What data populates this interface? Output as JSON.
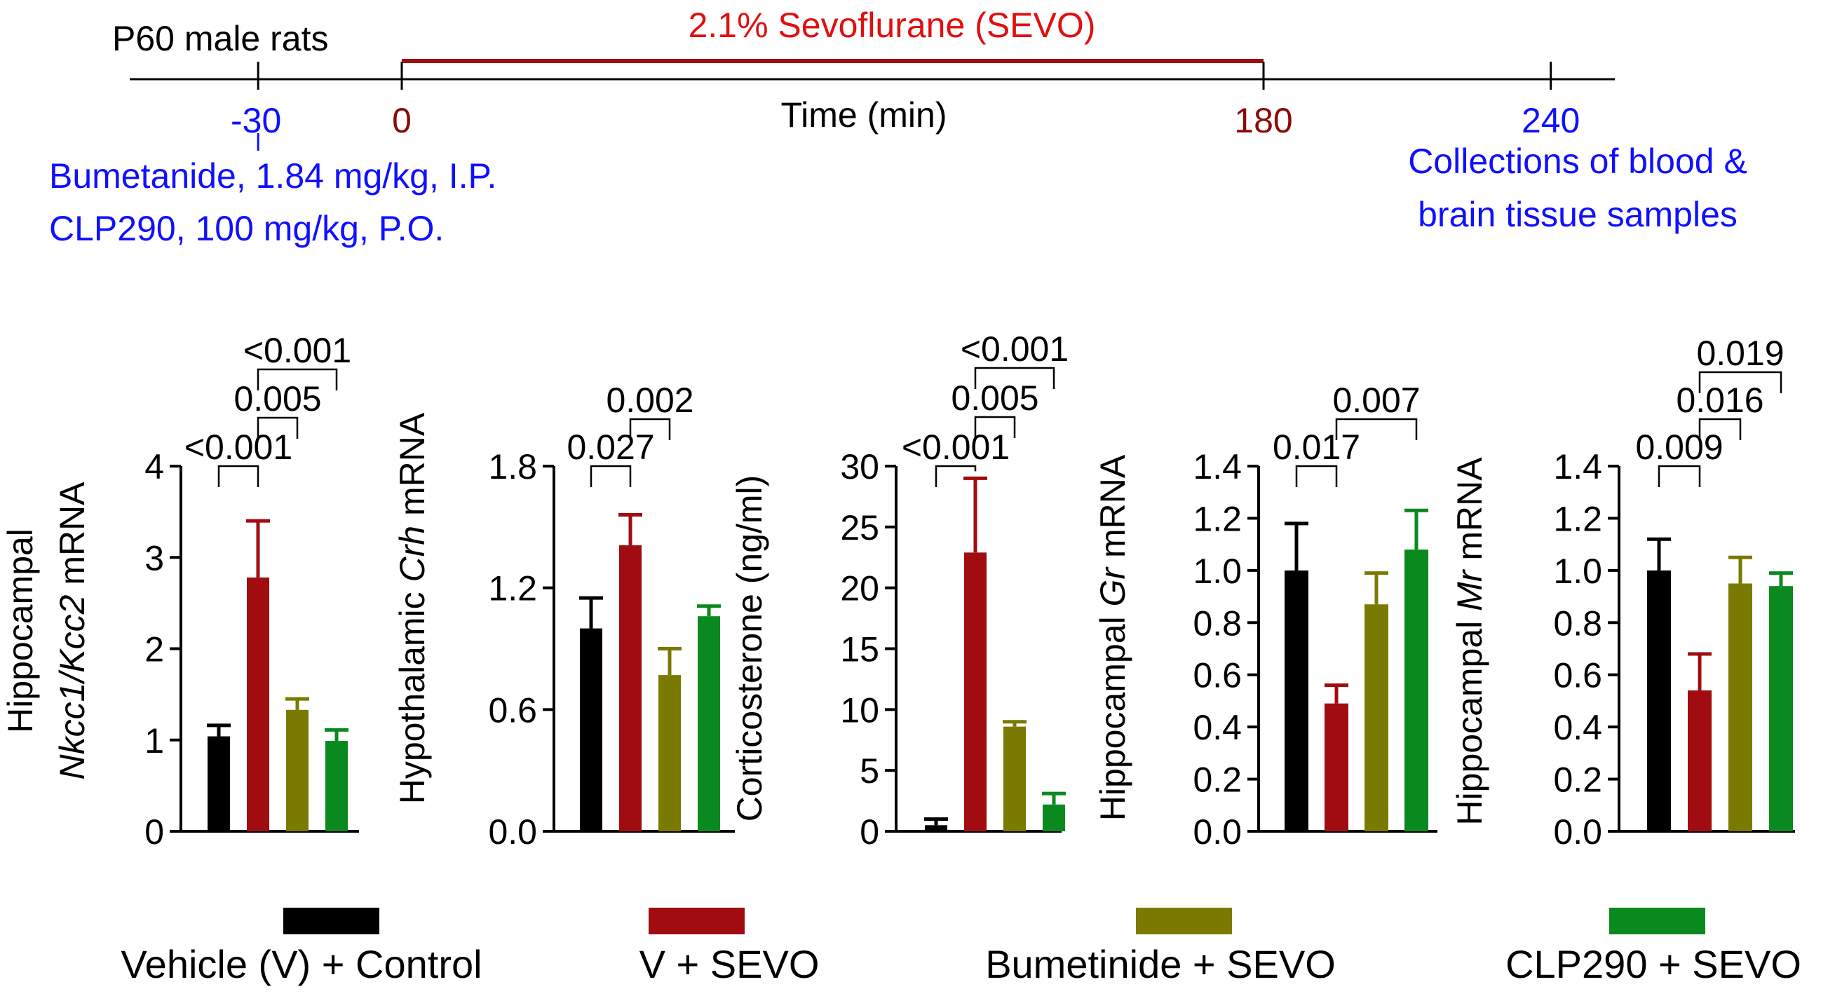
{
  "colors": {
    "vehicle_control": "#000000",
    "v_sevo": "#a00c10",
    "bumetanide_sevo": "#7a7a00",
    "clp290_sevo": "#0a8a1e",
    "timeline": "#000000",
    "timeline_sevo": "#a00c10",
    "blue_text": "#1010ff",
    "red_text": "#e01010",
    "dark_red_text": "#8b0a0a"
  },
  "timeline": {
    "subject_label": "P60 male rats",
    "sevo_label": "2.1% Sevoflurane (SEVO)",
    "axis_label": "Time (min)",
    "ticks": [
      {
        "label": "-30",
        "value": -30,
        "color": "blue"
      },
      {
        "label": "0",
        "value": 0,
        "color": "darkred"
      },
      {
        "label": "180",
        "value": 180,
        "color": "darkred"
      },
      {
        "label": "240",
        "value": 240,
        "color": "blue"
      }
    ],
    "sevo_start": 0,
    "sevo_end": 180,
    "pre_treatment_line1": "Bumetanide, 1.84 mg/kg, I.P.",
    "pre_treatment_line2": "CLP290, 100 mg/kg, P.O.",
    "collection_line1": "Collections of blood &",
    "collection_line2": "brain tissue samples"
  },
  "chart_data": [
    {
      "type": "bar",
      "id": "nkcc1-kcc2",
      "ylabel_line1": "Hippocampal",
      "ylabel_line2_parts": [
        {
          "text": "Nkcc1/Kcc2",
          "italic": true
        },
        {
          "text": " mRNA",
          "italic": false
        }
      ],
      "ylim": [
        0,
        4
      ],
      "yticks": [
        {
          "v": 0,
          "label": "0"
        },
        {
          "v": 1,
          "label": "1"
        },
        {
          "v": 2,
          "label": "2"
        },
        {
          "v": 3,
          "label": "3"
        },
        {
          "v": 4,
          "label": "4"
        }
      ],
      "categories": [
        "Vehicle (V) + Control",
        "V + SEVO",
        "Bumetinide + SEVO",
        "CLP290 + SEVO"
      ],
      "values": [
        1.04,
        2.78,
        1.33,
        0.99
      ],
      "errors": [
        0.12,
        0.62,
        0.12,
        0.12
      ],
      "comparisons": [
        {
          "a": 0,
          "b": 1,
          "label": "<0.001",
          "level": 0
        },
        {
          "a": 1,
          "b": 2,
          "label": "0.005",
          "level": 1
        },
        {
          "a": 1,
          "b": 3,
          "label": "<0.001",
          "level": 2
        }
      ]
    },
    {
      "type": "bar",
      "id": "crh",
      "ylabel_parts": [
        {
          "text": "Hypothalamic ",
          "italic": false
        },
        {
          "text": "Crh",
          "italic": true
        },
        {
          "text": " mRNA",
          "italic": false
        }
      ],
      "ylim": [
        0,
        1.8
      ],
      "yticks": [
        {
          "v": 0,
          "label": "0.0"
        },
        {
          "v": 0.6,
          "label": "0.6"
        },
        {
          "v": 1.2,
          "label": "1.2"
        },
        {
          "v": 1.8,
          "label": "1.8"
        }
      ],
      "categories": [
        "Vehicle (V) + Control",
        "V + SEVO",
        "Bumetinide + SEVO",
        "CLP290 + SEVO"
      ],
      "values": [
        1.0,
        1.41,
        0.77,
        1.06
      ],
      "errors": [
        0.15,
        0.15,
        0.13,
        0.05
      ],
      "comparisons": [
        {
          "a": 0,
          "b": 1,
          "label": "0.027",
          "level": 0
        },
        {
          "a": 1,
          "b": 2,
          "label": "0.002",
          "level": 1
        }
      ]
    },
    {
      "type": "bar",
      "id": "corticosterone",
      "ylabel_parts": [
        {
          "text": "Corticosterone (ng/ml)",
          "italic": false
        }
      ],
      "ylim": [
        0,
        30
      ],
      "yticks": [
        {
          "v": 0,
          "label": "0"
        },
        {
          "v": 5,
          "label": "5"
        },
        {
          "v": 10,
          "label": "10"
        },
        {
          "v": 15,
          "label": "15"
        },
        {
          "v": 20,
          "label": "20"
        },
        {
          "v": 25,
          "label": "25"
        },
        {
          "v": 30,
          "label": "30"
        }
      ],
      "categories": [
        "Vehicle (V) + Control",
        "V + SEVO",
        "Bumetinide + SEVO",
        "CLP290 + SEVO"
      ],
      "values": [
        0.5,
        22.9,
        8.6,
        2.2
      ],
      "errors": [
        0.5,
        6.1,
        0.4,
        0.9
      ],
      "comparisons": [
        {
          "a": 0,
          "b": 1,
          "label": "<0.001",
          "level": 0
        },
        {
          "a": 1,
          "b": 2,
          "label": "0.005",
          "level": 1
        },
        {
          "a": 1,
          "b": 3,
          "label": "<0.001",
          "level": 2
        }
      ]
    },
    {
      "type": "bar",
      "id": "gr",
      "ylabel_parts": [
        {
          "text": "Hippocampal ",
          "italic": false
        },
        {
          "text": "Gr",
          "italic": true
        },
        {
          "text": " mRNA",
          "italic": false
        }
      ],
      "ylim": [
        0,
        1.4
      ],
      "yticks": [
        {
          "v": 0,
          "label": "0.0"
        },
        {
          "v": 0.2,
          "label": "0.2"
        },
        {
          "v": 0.4,
          "label": "0.4"
        },
        {
          "v": 0.6,
          "label": "0.6"
        },
        {
          "v": 0.8,
          "label": "0.8"
        },
        {
          "v": 1.0,
          "label": "1.0"
        },
        {
          "v": 1.2,
          "label": "1.2"
        },
        {
          "v": 1.4,
          "label": "1.4"
        }
      ],
      "categories": [
        "Vehicle (V) + Control",
        "V + SEVO",
        "Bumetinide + SEVO",
        "CLP290 + SEVO"
      ],
      "values": [
        1.0,
        0.49,
        0.87,
        1.08
      ],
      "errors": [
        0.18,
        0.07,
        0.12,
        0.15
      ],
      "comparisons": [
        {
          "a": 0,
          "b": 1,
          "label": "0.017",
          "level": 0
        },
        {
          "a": 1,
          "b": 3,
          "label": "0.007",
          "level": 1
        }
      ]
    },
    {
      "type": "bar",
      "id": "mr",
      "ylabel_parts": [
        {
          "text": "Hippocampal ",
          "italic": false
        },
        {
          "text": "Mr",
          "italic": true
        },
        {
          "text": " mRNA",
          "italic": false
        }
      ],
      "ylim": [
        0,
        1.4
      ],
      "yticks": [
        {
          "v": 0,
          "label": "0.0"
        },
        {
          "v": 0.2,
          "label": "0.2"
        },
        {
          "v": 0.4,
          "label": "0.4"
        },
        {
          "v": 0.6,
          "label": "0.6"
        },
        {
          "v": 0.8,
          "label": "0.8"
        },
        {
          "v": 1.0,
          "label": "1.0"
        },
        {
          "v": 1.2,
          "label": "1.2"
        },
        {
          "v": 1.4,
          "label": "1.4"
        }
      ],
      "categories": [
        "Vehicle (V) + Control",
        "V + SEVO",
        "Bumetinide + SEVO",
        "CLP290 + SEVO"
      ],
      "values": [
        1.0,
        0.54,
        0.95,
        0.94
      ],
      "errors": [
        0.12,
        0.14,
        0.1,
        0.05
      ],
      "comparisons": [
        {
          "a": 0,
          "b": 1,
          "label": "0.009",
          "level": 0
        },
        {
          "a": 1,
          "b": 2,
          "label": "0.016",
          "level": 1
        },
        {
          "a": 1,
          "b": 3,
          "label": "0.019",
          "level": 2
        }
      ]
    }
  ],
  "legend": [
    {
      "label": "Vehicle (V) + Control",
      "color_key": "vehicle_control"
    },
    {
      "label": "V + SEVO",
      "color_key": "v_sevo"
    },
    {
      "label": "Bumetinide + SEVO",
      "color_key": "bumetanide_sevo"
    },
    {
      "label": "CLP290 + SEVO",
      "color_key": "clp290_sevo"
    }
  ]
}
